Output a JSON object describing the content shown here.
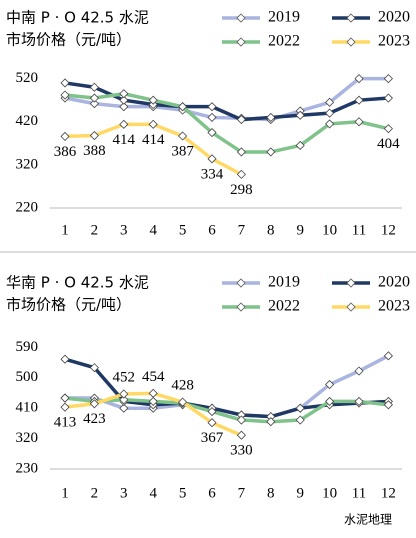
{
  "chart_data": [
    {
      "type": "line",
      "title": "中南 P · O 42.5 水泥",
      "subtitle": "市场价格（元/吨）",
      "categories": [
        "1",
        "2",
        "3",
        "4",
        "5",
        "6",
        "7",
        "8",
        "9",
        "10",
        "11",
        "12"
      ],
      "ylim": [
        220,
        540
      ],
      "yticks": [
        220,
        320,
        420,
        520
      ],
      "series": [
        {
          "name": "2019",
          "color": "#a9b4e0",
          "values": [
            475,
            462,
            455,
            455,
            447,
            430,
            428,
            425,
            445,
            465,
            520,
            520
          ]
        },
        {
          "name": "2020",
          "color": "#1f3864",
          "values": [
            510,
            500,
            470,
            460,
            455,
            455,
            425,
            430,
            435,
            440,
            470,
            475
          ]
        },
        {
          "name": "2022",
          "color": "#7fc28a",
          "values": [
            482,
            475,
            485,
            470,
            455,
            395,
            350,
            350,
            365,
            415,
            420,
            404
          ],
          "value_labels": [
            null,
            null,
            null,
            null,
            null,
            null,
            null,
            null,
            null,
            null,
            null,
            "404"
          ],
          "label_color": "#3a9a3a"
        },
        {
          "name": "2023",
          "color": "#ffd966",
          "values": [
            386,
            388,
            414,
            414,
            387,
            334,
            298,
            null,
            null,
            null,
            null,
            null
          ],
          "value_labels": [
            "386",
            "388",
            "414",
            "414",
            "387",
            "334",
            "298",
            null,
            null,
            null,
            null,
            null
          ],
          "label_color": "#f0901e"
        }
      ]
    },
    {
      "type": "line",
      "title": "华南 P · O 42.5 水泥",
      "subtitle": "市场价格（元/吨）",
      "categories": [
        "1",
        "2",
        "3",
        "4",
        "5",
        "6",
        "7",
        "8",
        "9",
        "10",
        "11",
        "12"
      ],
      "ylim": [
        230,
        600
      ],
      "yticks": [
        230,
        320,
        410,
        500,
        590
      ],
      "series": [
        {
          "name": "2019",
          "color": "#a9b4e0",
          "values": [
            440,
            440,
            410,
            410,
            420,
            410,
            390,
            385,
            410,
            480,
            520,
            565
          ]
        },
        {
          "name": "2020",
          "color": "#1f3864",
          "values": [
            555,
            530,
            430,
            420,
            425,
            410,
            390,
            385,
            410,
            420,
            425,
            430
          ]
        },
        {
          "name": "2022",
          "color": "#7fc28a",
          "values": [
            440,
            430,
            435,
            430,
            425,
            400,
            375,
            370,
            375,
            430,
            430,
            420
          ]
        },
        {
          "name": "2023",
          "color": "#ffd966",
          "values": [
            413,
            423,
            452,
            454,
            428,
            367,
            330,
            null,
            null,
            null,
            null,
            null
          ],
          "value_labels": [
            "413",
            "423",
            "452",
            "454",
            "428",
            "367",
            "330",
            null,
            null,
            null,
            null,
            null
          ],
          "label_color": "#f0901e"
        }
      ]
    }
  ],
  "watermark": "水泥地理"
}
